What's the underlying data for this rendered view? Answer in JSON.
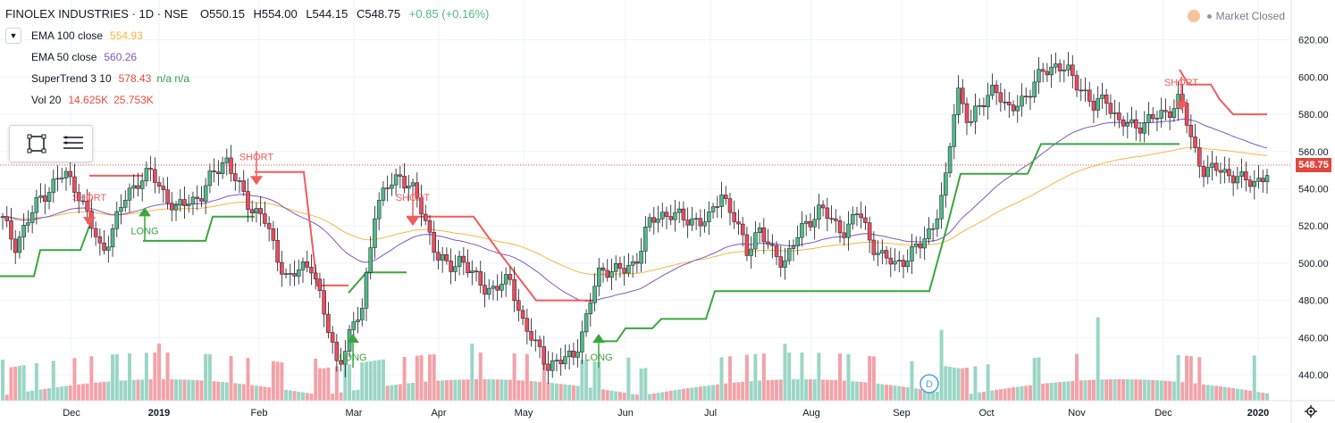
{
  "header": {
    "symbol": "FINOLEX INDUSTRIES · 1D · NSE",
    "open": "O550.15",
    "high": "H554.00",
    "low": "L544.15",
    "close": "C548.75",
    "change": "+0.85 (+0.16%)"
  },
  "legend": [
    {
      "name": "EMA 100 close",
      "value": "554.93",
      "color": "#f5b740"
    },
    {
      "name": "EMA 50 close",
      "value": "560.26",
      "color": "#7e57c2"
    },
    {
      "name": "SuperTrend 3 10",
      "value": "578.43",
      "extra": "n/a n/a",
      "color": "#e74c3c",
      "extra_color": "#2ea043"
    },
    {
      "name": "Vol 20",
      "value": "14.625K",
      "extra": "25.753K",
      "color": "#e74c3c",
      "extra_color": "#e74c3c"
    }
  ],
  "market_status": "Market Closed",
  "last_price_label": "548.75",
  "event_marker": "D",
  "colors": {
    "up": "#53b987",
    "down": "#eb4d5c",
    "ema100": "#f5b740",
    "ema50": "#7e57c2",
    "st_up": "#3aa63e",
    "st_down": "#f25c5c",
    "vol_up": "#9bd6c5",
    "vol_down": "#f2a3a8"
  },
  "chart_data": {
    "type": "candlestick",
    "y_axis": {
      "ticks": [
        "620.00",
        "600.00",
        "580.00",
        "560.00",
        "540.00",
        "520.00",
        "500.00",
        "480.00",
        "460.00",
        "440.00"
      ],
      "range": [
        428,
        628
      ]
    },
    "x_axis": {
      "ticks": [
        "Dec",
        "2019",
        "Feb",
        "Mar",
        "Apr",
        "May",
        "Jun",
        "Jul",
        "Aug",
        "Sep",
        "Oct",
        "Nov",
        "Dec",
        "2020"
      ]
    },
    "signals": [
      {
        "label": "SHORT",
        "type": "sell"
      },
      {
        "label": "LONG",
        "type": "buy"
      },
      {
        "label": "SHORT",
        "type": "sell"
      },
      {
        "label": "LONG",
        "type": "buy"
      },
      {
        "label": "SHORT",
        "type": "sell"
      },
      {
        "label": "LONG",
        "type": "buy"
      },
      {
        "label": "SHORT",
        "type": "sell"
      }
    ],
    "close_path": [
      523,
      510,
      522,
      535,
      542,
      548,
      540,
      522,
      506,
      520,
      537,
      545,
      548,
      538,
      528,
      534,
      536,
      548,
      557,
      541,
      530,
      526,
      505,
      492,
      496,
      500,
      470,
      445,
      462,
      475,
      528,
      540,
      548,
      540,
      525,
      505,
      496,
      504,
      492,
      486,
      488,
      490,
      468,
      455,
      446,
      447,
      450,
      468,
      494,
      498,
      495,
      500,
      520,
      525,
      528,
      522,
      524,
      523,
      538,
      525,
      505,
      520,
      505,
      501,
      513,
      522,
      531,
      520,
      518,
      528,
      512,
      503,
      499,
      504,
      509,
      520,
      540,
      595,
      575,
      585,
      597,
      580,
      588,
      592,
      605,
      606,
      602,
      595,
      583,
      590,
      575,
      574,
      575,
      578,
      582,
      588,
      564,
      548,
      551,
      548,
      544,
      544,
      548
    ]
  }
}
